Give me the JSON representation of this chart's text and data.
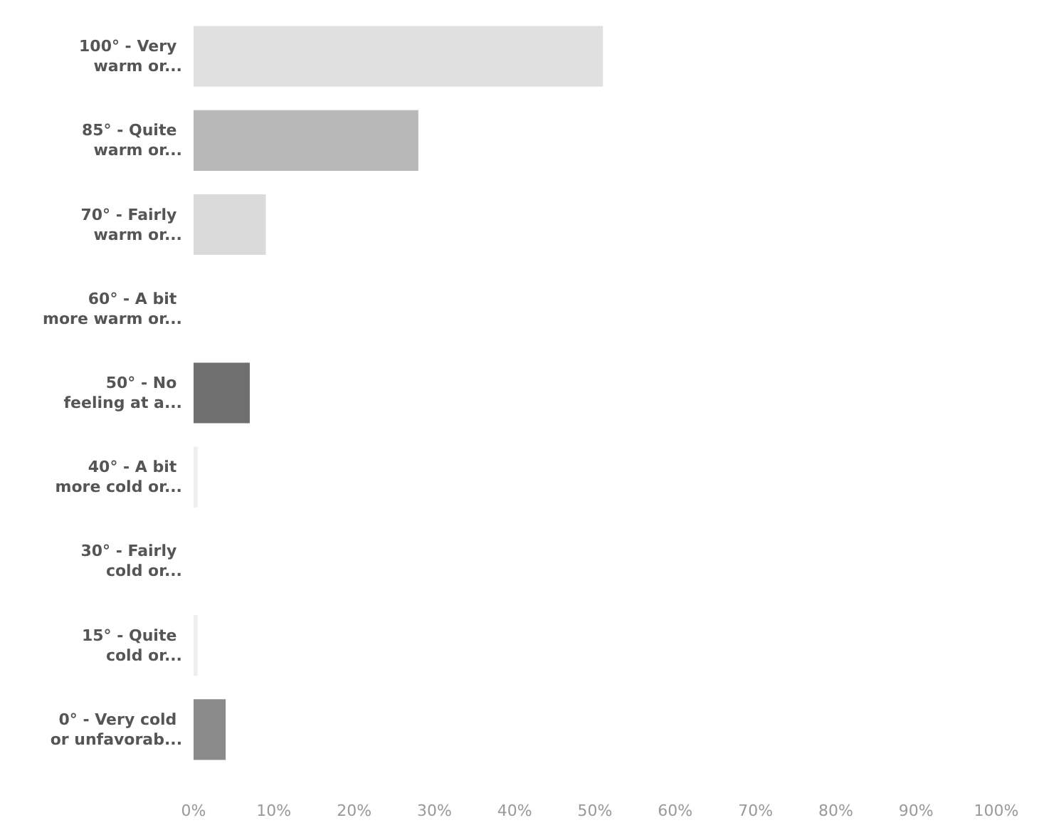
{
  "chart_data": {
    "type": "bar",
    "orientation": "horizontal",
    "categories": [
      "100° - Very warm or...",
      "85° - Quite warm or...",
      "70° - Fairly warm or...",
      "60° - A bit more warm or...",
      "50° - No feeling at a...",
      "40° - A bit more cold or...",
      "30° - Fairly cold or...",
      "15° - Quite cold or...",
      "0° - Very cold or unfavorab..."
    ],
    "values": [
      51,
      28,
      9,
      0,
      7,
      0.5,
      0,
      0.5,
      4
    ],
    "colors": [
      "#e0e0e0",
      "#b8b8b8",
      "#dadada",
      "#cccccc",
      "#6f6f6f",
      "#eeeeee",
      "#cccccc",
      "#eeeeee",
      "#8a8a8a"
    ],
    "xlim": [
      0,
      100
    ],
    "xticks": [
      {
        "value": 0,
        "label": "0%"
      },
      {
        "value": 10,
        "label": "10%"
      },
      {
        "value": 20,
        "label": "20%"
      },
      {
        "value": 30,
        "label": "30%"
      },
      {
        "value": 40,
        "label": "40%"
      },
      {
        "value": 50,
        "label": "50%"
      },
      {
        "value": 60,
        "label": "60%"
      },
      {
        "value": 70,
        "label": "70%"
      },
      {
        "value": 80,
        "label": "80%"
      },
      {
        "value": 90,
        "label": "90%"
      },
      {
        "value": 100,
        "label": "100%"
      }
    ],
    "grid": false
  }
}
